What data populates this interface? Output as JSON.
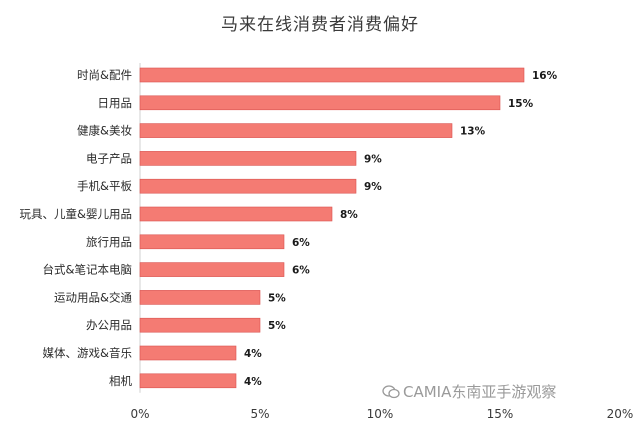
{
  "chart_data": {
    "type": "bar",
    "orientation": "horizontal",
    "title": "马来在线消费者消费偏好",
    "categories": [
      "时尚&配件",
      "日用品",
      "健康&美妆",
      "电子产品",
      "手机&平板",
      "玩具、儿童&婴儿用品",
      "旅行用品",
      "台式&笔记本电脑",
      "运动用品&交通",
      "办公用品",
      "媒体、游戏&音乐",
      "相机"
    ],
    "values": [
      16,
      15,
      13,
      9,
      9,
      8,
      6,
      6,
      5,
      5,
      4,
      4
    ],
    "value_labels": [
      "16%",
      "15%",
      "13%",
      "9%",
      "9%",
      "8%",
      "6%",
      "6%",
      "5%",
      "5%",
      "4%",
      "4%"
    ],
    "x_ticks": [
      "0%",
      "5%",
      "10%",
      "15%",
      "20%"
    ],
    "x_tick_values": [
      0,
      5,
      10,
      15,
      20
    ],
    "xlim": [
      0,
      20
    ],
    "grid": false,
    "legend": "none",
    "bar_color": "#f47b73",
    "bar_edge_color": "#d9534f"
  },
  "watermark": {
    "text": "CAMIA东南亚手游观察"
  }
}
